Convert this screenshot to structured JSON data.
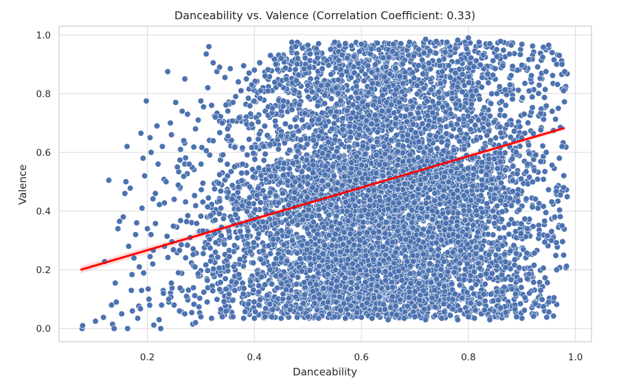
{
  "chart_data": {
    "type": "scatter",
    "title": "Danceability vs. Valence (Correlation Coefficient: 0.33)",
    "xlabel": "Danceability",
    "ylabel": "Valence",
    "xlim": [
      0.035,
      1.03
    ],
    "ylim": [
      -0.045,
      1.03
    ],
    "xticks": [
      0.2,
      0.4,
      0.6,
      0.8,
      1.0
    ],
    "xtick_labels": [
      "0.2",
      "0.4",
      "0.6",
      "0.8",
      "1.0"
    ],
    "yticks": [
      0.0,
      0.2,
      0.4,
      0.6,
      0.8,
      1.0
    ],
    "ytick_labels": [
      "0.0",
      "0.2",
      "0.4",
      "0.6",
      "0.8",
      "1.0"
    ],
    "grid": true,
    "point_color": "#4c72b0",
    "trend_color": "#ff0000",
    "correlation": 0.33,
    "regression_line": {
      "x": [
        0.075,
        0.98
      ],
      "y": [
        0.2,
        0.683
      ]
    },
    "series": [
      {
        "points": [
          [
            0.078,
            0.0
          ],
          [
            0.079,
            0.01
          ],
          [
            0.103,
            0.025
          ],
          [
            0.118,
            0.038
          ],
          [
            0.12,
            0.228
          ],
          [
            0.128,
            0.505
          ],
          [
            0.133,
            0.08
          ],
          [
            0.135,
            0.015
          ],
          [
            0.138,
            0.0
          ],
          [
            0.14,
            0.155
          ],
          [
            0.142,
            0.09
          ],
          [
            0.145,
            0.34
          ],
          [
            0.148,
            0.365
          ],
          [
            0.152,
            0.05
          ],
          [
            0.155,
            0.38
          ],
          [
            0.158,
            0.46
          ],
          [
            0.16,
            0.5
          ],
          [
            0.162,
            0.62
          ],
          [
            0.163,
            0.0
          ],
          [
            0.165,
            0.28
          ],
          [
            0.168,
            0.478
          ],
          [
            0.17,
            0.13
          ],
          [
            0.172,
            0.06
          ],
          [
            0.175,
            0.24
          ],
          [
            0.178,
            0.32
          ],
          [
            0.18,
            0.36
          ],
          [
            0.182,
            0.035
          ],
          [
            0.185,
            0.21
          ],
          [
            0.188,
            0.665
          ],
          [
            0.19,
            0.41
          ],
          [
            0.192,
            0.58
          ],
          [
            0.195,
            0.52
          ],
          [
            0.198,
            0.775
          ],
          [
            0.2,
            0.34
          ],
          [
            0.203,
            0.1
          ],
          [
            0.205,
            0.65
          ],
          [
            0.207,
            0.6
          ],
          [
            0.21,
            0.22
          ],
          [
            0.212,
            0.012
          ],
          [
            0.215,
            0.46
          ],
          [
            0.218,
            0.69
          ],
          [
            0.22,
            0.56
          ],
          [
            0.222,
            0.03
          ],
          [
            0.225,
            0.0
          ],
          [
            0.228,
            0.62
          ],
          [
            0.232,
            0.28
          ],
          [
            0.235,
            0.5
          ],
          [
            0.238,
            0.875
          ],
          [
            0.24,
            0.09
          ],
          [
            0.243,
            0.7
          ],
          [
            0.245,
            0.66
          ],
          [
            0.25,
            0.44
          ],
          [
            0.253,
            0.77
          ],
          [
            0.256,
            0.55
          ],
          [
            0.258,
            0.19
          ],
          [
            0.262,
            0.61
          ],
          [
            0.265,
            0.74
          ],
          [
            0.268,
            0.64
          ],
          [
            0.27,
            0.85
          ],
          [
            0.275,
            0.73
          ],
          [
            0.278,
            0.56
          ],
          [
            0.28,
            0.31
          ],
          [
            0.285,
            0.015
          ],
          [
            0.29,
            0.68
          ],
          [
            0.295,
            0.71
          ],
          [
            0.3,
            0.775
          ],
          [
            0.305,
            0.755
          ],
          [
            0.31,
            0.935
          ],
          [
            0.313,
            0.82
          ],
          [
            0.315,
            0.96
          ],
          [
            0.32,
            0.76
          ],
          [
            0.323,
            0.905
          ],
          [
            0.327,
            0.72
          ],
          [
            0.33,
            0.875
          ],
          [
            0.335,
            0.89
          ],
          [
            0.34,
            0.7
          ],
          [
            0.345,
            0.855
          ],
          [
            0.35,
            0.68
          ],
          [
            0.355,
            0.885
          ],
          [
            0.36,
            0.77
          ],
          [
            0.365,
            0.79
          ],
          [
            0.37,
            0.84
          ],
          [
            0.375,
            0.81
          ],
          [
            0.38,
            0.895
          ],
          [
            0.385,
            0.85
          ],
          [
            0.39,
            0.87
          ],
          [
            0.395,
            0.83
          ],
          [
            0.4,
            0.88
          ],
          [
            0.41,
            0.905
          ],
          [
            0.42,
            0.86
          ],
          [
            0.43,
            0.93
          ],
          [
            0.44,
            0.9
          ],
          [
            0.45,
            0.92
          ],
          [
            0.47,
            0.975
          ],
          [
            0.49,
            0.955
          ],
          [
            0.5,
            0.965
          ],
          [
            0.52,
            0.97
          ],
          [
            0.55,
            0.975
          ],
          [
            0.57,
            0.97
          ],
          [
            0.6,
            0.968
          ],
          [
            0.63,
            0.972
          ],
          [
            0.66,
            0.968
          ],
          [
            0.69,
            0.975
          ],
          [
            0.72,
            0.985
          ],
          [
            0.74,
            0.978
          ],
          [
            0.76,
            0.975
          ],
          [
            0.78,
            0.982
          ],
          [
            0.8,
            0.99
          ],
          [
            0.82,
            0.975
          ],
          [
            0.84,
            0.97
          ],
          [
            0.86,
            0.978
          ],
          [
            0.88,
            0.965
          ],
          [
            0.9,
            0.968
          ],
          [
            0.92,
            0.962
          ],
          [
            0.94,
            0.958
          ],
          [
            0.95,
            0.965
          ],
          [
            0.96,
            0.915
          ],
          [
            0.965,
            0.9
          ],
          [
            0.97,
            0.93
          ],
          [
            0.975,
            0.9
          ],
          [
            0.978,
            0.81
          ],
          [
            0.98,
            0.875
          ],
          [
            0.968,
            0.75
          ],
          [
            0.972,
            0.685
          ],
          [
            0.975,
            0.62
          ],
          [
            0.97,
            0.58
          ],
          [
            0.978,
            0.48
          ],
          [
            0.972,
            0.455
          ],
          [
            0.975,
            0.35
          ],
          [
            0.978,
            0.25
          ],
          [
            0.965,
            0.2
          ],
          [
            0.96,
            0.105
          ],
          [
            0.95,
            0.09
          ],
          [
            0.94,
            0.075
          ],
          [
            0.935,
            0.13
          ],
          [
            0.955,
            0.3
          ],
          [
            0.93,
            0.41
          ],
          [
            0.925,
            0.085
          ],
          [
            0.91,
            0.17
          ],
          [
            0.9,
            0.035
          ],
          [
            0.89,
            0.04
          ],
          [
            0.87,
            0.055
          ],
          [
            0.86,
            0.07
          ],
          [
            0.84,
            0.03
          ],
          [
            0.82,
            0.085
          ],
          [
            0.8,
            0.04
          ],
          [
            0.78,
            0.03
          ],
          [
            0.75,
            0.035
          ],
          [
            0.72,
            0.03
          ],
          [
            0.7,
            0.04
          ],
          [
            0.68,
            0.035
          ],
          [
            0.65,
            0.03
          ],
          [
            0.62,
            0.035
          ],
          [
            0.6,
            0.038
          ],
          [
            0.57,
            0.035
          ],
          [
            0.55,
            0.04
          ],
          [
            0.52,
            0.035
          ],
          [
            0.5,
            0.04
          ],
          [
            0.48,
            0.038
          ],
          [
            0.45,
            0.035
          ],
          [
            0.42,
            0.04
          ],
          [
            0.4,
            0.035
          ],
          [
            0.38,
            0.035
          ],
          [
            0.36,
            0.04
          ],
          [
            0.34,
            0.04
          ],
          [
            0.32,
            0.035
          ],
          [
            0.3,
            0.04
          ],
          [
            0.29,
            0.02
          ],
          [
            0.27,
            0.05
          ],
          [
            0.26,
            0.06
          ],
          [
            0.25,
            0.08
          ],
          [
            0.24,
            0.1
          ],
          [
            0.23,
            0.12
          ]
        ]
      }
    ]
  }
}
